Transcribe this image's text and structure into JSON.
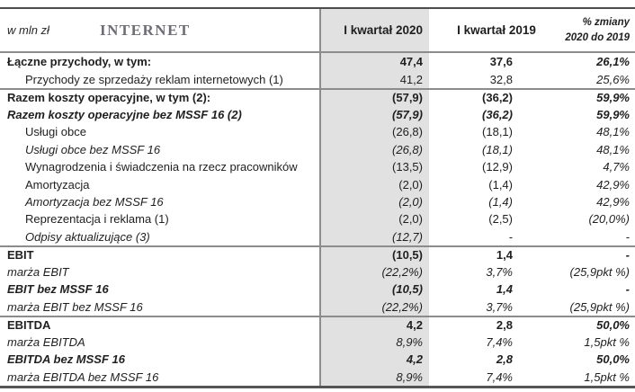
{
  "header": {
    "unit": "w mln zł",
    "title": "INTERNET",
    "col_2020": "I kwartał 2020",
    "col_2019": "I kwartał 2019",
    "col_change_line1": "% zmiany",
    "col_change_line2": "2020 do 2019"
  },
  "colors": {
    "shaded_column_bg": "#e1e1e1",
    "outer_border": "#4d4d4d",
    "inner_rules": "#8c8c8c",
    "title_gray": "#6d6d75",
    "text": "#1f1f1f"
  },
  "rows": [
    {
      "label": "Łączne przychody, w tym:",
      "v2020": "47,4",
      "v2019": "37,6",
      "chg": "26,1%"
    },
    {
      "label": "Przychody ze sprzedaży reklam internetowych (1)",
      "v2020": "41,2",
      "v2019": "32,8",
      "chg": "25,6%"
    },
    {
      "label": "Razem koszty operacyjne, w tym (2):",
      "v2020": "(57,9)",
      "v2019": "(36,2)",
      "chg": "59,9%"
    },
    {
      "label": "Razem koszty operacyjne bez MSSF 16 (2)",
      "v2020": "(57,9)",
      "v2019": "(36,2)",
      "chg": "59,9%"
    },
    {
      "label": "Usługi obce",
      "v2020": "(26,8)",
      "v2019": "(18,1)",
      "chg": "48,1%"
    },
    {
      "label": "Usługi obce bez MSSF 16",
      "v2020": "(26,8)",
      "v2019": "(18,1)",
      "chg": "48,1%"
    },
    {
      "label": "Wynagrodzenia i świadczenia na rzecz pracowników",
      "v2020": "(13,5)",
      "v2019": "(12,9)",
      "chg": "4,7%"
    },
    {
      "label": "Amortyzacja",
      "v2020": "(2,0)",
      "v2019": "(1,4)",
      "chg": "42,9%"
    },
    {
      "label": "Amortyzacja bez MSSF 16",
      "v2020": "(2,0)",
      "v2019": "(1,4)",
      "chg": "42,9%"
    },
    {
      "label": "Reprezentacja i reklama (1)",
      "v2020": "(2,0)",
      "v2019": "(2,5)",
      "chg": "(20,0%)"
    },
    {
      "label": "Odpisy aktualizujące (3)",
      "v2020": "(12,7)",
      "v2019": "-",
      "chg": "-"
    },
    {
      "label": "EBIT",
      "v2020": "(10,5)",
      "v2019": "1,4",
      "chg": "-"
    },
    {
      "label": "marża EBIT",
      "v2020": "(22,2%)",
      "v2019": "3,7%",
      "chg": "(25,9pkt %)"
    },
    {
      "label": "EBIT bez MSSF 16",
      "v2020": "(10,5)",
      "v2019": "1,4",
      "chg": "-"
    },
    {
      "label": "marża EBIT bez MSSF 16",
      "v2020": "(22,2%)",
      "v2019": "3,7%",
      "chg": "(25,9pkt %)"
    },
    {
      "label": "EBITDA",
      "v2020": "4,2",
      "v2019": "2,8",
      "chg": "50,0%"
    },
    {
      "label": "marża EBITDA",
      "v2020": "8,9%",
      "v2019": "7,4%",
      "chg": "1,5pkt %"
    },
    {
      "label": "EBITDA bez MSSF 16",
      "v2020": "4,2",
      "v2019": "2,8",
      "chg": "50,0%"
    },
    {
      "label": "marża EBITDA bez MSSF 16",
      "v2020": "8,9%",
      "v2019": "7,4%",
      "chg": "1,5pkt %"
    }
  ]
}
